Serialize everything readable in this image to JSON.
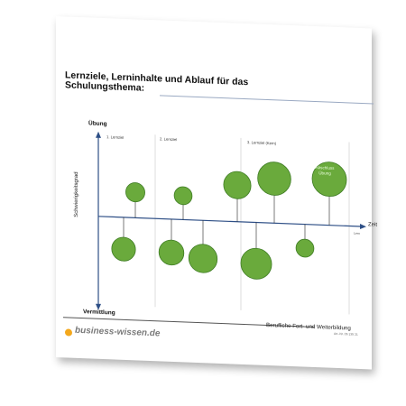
{
  "document": {
    "title_line1": "Lernziele, Lerninhalte und Ablauf für das",
    "title_line2": "Schulungsthema:",
    "y_top_label": "Übung",
    "y_bottom_label": "Vermittlung",
    "y_axis_label": "Schwierigkeitsgrad",
    "x_axis_label": "Zeit",
    "x_axis_sublabel": "Lern",
    "sections": [
      "1. Lernziel",
      "2. Lernziel",
      "3. Lernziel (Kern)"
    ],
    "circle_label_line1": "Abschluss",
    "circle_label_line2": "Übung",
    "circles": [
      {
        "direction": "up",
        "level": 0.35
      },
      {
        "direction": "down",
        "level": 0.55
      },
      {
        "direction": "down",
        "level": 0.6
      },
      {
        "direction": "up",
        "level": 0.3
      },
      {
        "direction": "down",
        "level": 0.75
      },
      {
        "direction": "up",
        "level": 0.7
      },
      {
        "direction": "down",
        "level": 0.85
      },
      {
        "direction": "up",
        "level": 0.95
      },
      {
        "direction": "down",
        "level": 0.3
      },
      {
        "direction": "up",
        "level": 1.0
      }
    ],
    "colors": {
      "circle": "#6aaa3c",
      "circle_stroke": "#3f7d24",
      "accent": "#f4a81d"
    }
  },
  "footer": {
    "brand": "business-wissen.de",
    "right_text": "Berufliche Fort- und Weiterbildung",
    "art_nr": "Art.-Nr. 05 135 21"
  }
}
